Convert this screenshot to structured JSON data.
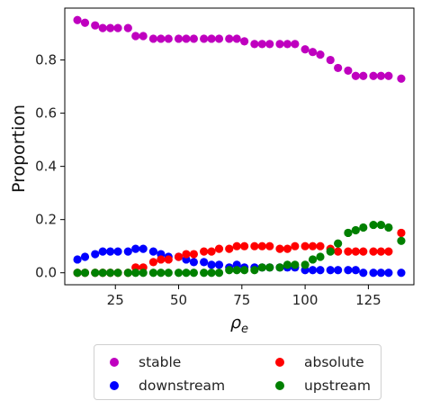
{
  "chart_data": {
    "type": "scatter",
    "xlabel_symbol": "ρ",
    "xlabel_subscript": "e",
    "ylabel": "Proportion",
    "xlim": [
      5,
      143
    ],
    "ylim": [
      -0.045,
      0.995
    ],
    "xticks": [
      25,
      50,
      75,
      100,
      125
    ],
    "yticks": [
      0.0,
      0.2,
      0.4,
      0.6,
      0.8
    ],
    "ytick_labels": [
      "0.0",
      "0.2",
      "0.4",
      "0.6",
      "0.8"
    ],
    "grid": false,
    "legend_position": "bottom-outside",
    "x": [
      10,
      13,
      17,
      20,
      23,
      26,
      30,
      33,
      36,
      40,
      43,
      46,
      50,
      53,
      56,
      60,
      63,
      66,
      70,
      73,
      76,
      80,
      83,
      86,
      90,
      93,
      96,
      100,
      103,
      106,
      110,
      113,
      117,
      120,
      123,
      127,
      130,
      133,
      138
    ],
    "series": [
      {
        "name": "stable",
        "color": "#bf00bf",
        "values": [
          0.95,
          0.94,
          0.93,
          0.92,
          0.92,
          0.92,
          0.92,
          0.89,
          0.89,
          0.88,
          0.88,
          0.88,
          0.88,
          0.88,
          0.88,
          0.88,
          0.88,
          0.88,
          0.88,
          0.88,
          0.87,
          0.86,
          0.86,
          0.86,
          0.86,
          0.86,
          0.86,
          0.84,
          0.83,
          0.82,
          0.8,
          0.77,
          0.76,
          0.74,
          0.74,
          0.74,
          0.74,
          0.74,
          0.73
        ]
      },
      {
        "name": "downstream",
        "color": "#0000ff",
        "values": [
          0.05,
          0.06,
          0.07,
          0.08,
          0.08,
          0.08,
          0.08,
          0.09,
          0.09,
          0.08,
          0.07,
          0.06,
          0.06,
          0.05,
          0.04,
          0.04,
          0.03,
          0.03,
          0.02,
          0.03,
          0.02,
          0.02,
          0.02,
          0.02,
          0.02,
          0.02,
          0.02,
          0.01,
          0.01,
          0.01,
          0.01,
          0.01,
          0.01,
          0.01,
          0.0,
          0.0,
          0.0,
          0.0,
          0.0
        ]
      },
      {
        "name": "absolute",
        "color": "#ff0000",
        "values": [
          0.0,
          0.0,
          0.0,
          0.0,
          0.0,
          0.0,
          0.0,
          0.02,
          0.02,
          0.04,
          0.05,
          0.05,
          0.06,
          0.07,
          0.07,
          0.08,
          0.08,
          0.09,
          0.09,
          0.1,
          0.1,
          0.1,
          0.1,
          0.1,
          0.09,
          0.09,
          0.1,
          0.1,
          0.1,
          0.1,
          0.09,
          0.08,
          0.08,
          0.08,
          0.08,
          0.08,
          0.08,
          0.08,
          0.15
        ]
      },
      {
        "name": "upstream",
        "color": "#008000",
        "values": [
          0.0,
          0.0,
          0.0,
          0.0,
          0.0,
          0.0,
          0.0,
          0.0,
          0.0,
          0.0,
          0.0,
          0.0,
          0.0,
          0.0,
          0.0,
          0.0,
          0.0,
          0.0,
          0.01,
          0.01,
          0.01,
          0.01,
          0.02,
          0.02,
          0.02,
          0.03,
          0.03,
          0.03,
          0.05,
          0.06,
          0.08,
          0.11,
          0.15,
          0.16,
          0.17,
          0.18,
          0.18,
          0.17,
          0.12
        ]
      }
    ]
  }
}
